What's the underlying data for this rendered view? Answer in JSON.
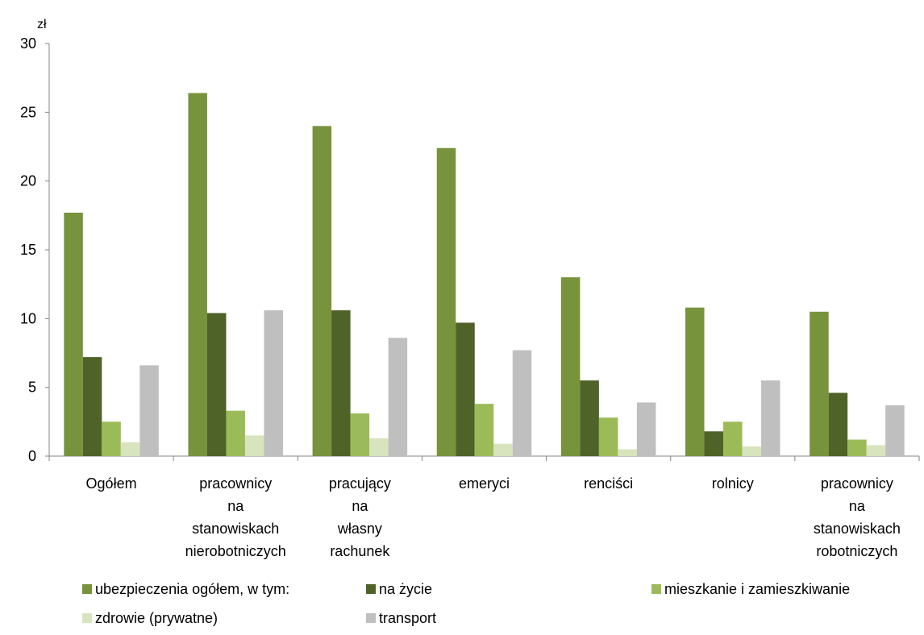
{
  "chart_data": {
    "type": "bar",
    "title": "",
    "xlabel": "",
    "ylabel": "zł",
    "ylim": [
      0,
      30
    ],
    "yticks": [
      0,
      5,
      10,
      15,
      20,
      25,
      30
    ],
    "grid": false,
    "legend_position": "bottom",
    "categories": [
      [
        "Ogółem"
      ],
      [
        "pracownicy",
        "na",
        "stanowiskach",
        "nierobotniczych"
      ],
      [
        "pracujący",
        "na",
        "własny",
        "rachunek"
      ],
      [
        "emeryci"
      ],
      [
        "renciści"
      ],
      [
        "rolnicy"
      ],
      [
        "pracownicy",
        "na",
        "stanowiskach",
        "robotniczych"
      ]
    ],
    "series": [
      {
        "name": "ubezpieczenia ogółem, w tym:",
        "color": "#77933c",
        "values": [
          17.7,
          26.4,
          24.0,
          22.4,
          13.0,
          10.8,
          10.5
        ]
      },
      {
        "name": "na życie",
        "color": "#4f6228",
        "values": [
          7.2,
          10.4,
          10.6,
          9.7,
          5.5,
          1.8,
          4.6
        ]
      },
      {
        "name": "mieszkanie i zamieszkiwanie",
        "color": "#9bbb59",
        "values": [
          2.5,
          3.3,
          3.1,
          3.8,
          2.8,
          2.5,
          1.2
        ]
      },
      {
        "name": "zdrowie (prywatne)",
        "color": "#d7e4bd",
        "values": [
          1.0,
          1.5,
          1.3,
          0.9,
          0.5,
          0.7,
          0.8
        ]
      },
      {
        "name": "transport",
        "color": "#bfbfbf",
        "values": [
          6.6,
          10.6,
          8.6,
          7.7,
          3.9,
          5.5,
          3.7
        ]
      }
    ]
  }
}
